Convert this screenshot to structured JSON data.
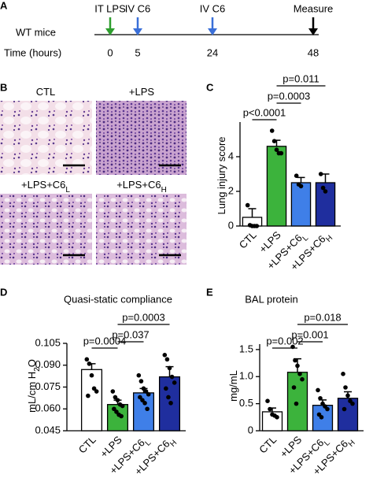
{
  "timeline": {
    "panel_label": "A",
    "subject": "WT mice",
    "axis_label": "Time (hours)",
    "events": [
      {
        "label": "IT LPS",
        "time": 0,
        "color": "#2e9e2e"
      },
      {
        "label": "IV C6",
        "time": 5,
        "color": "#3a6fd8"
      },
      {
        "label": "IV C6",
        "time": 24,
        "color": "#3a6fd8"
      },
      {
        "label": "Measure",
        "time": 48,
        "color": "#000000"
      }
    ]
  },
  "histology": {
    "panel_label": "B",
    "panels": [
      {
        "label": "CTL",
        "subscript": null,
        "color": "#000000"
      },
      {
        "label": "+LPS",
        "subscript": null,
        "color": "#2e9e2e"
      },
      {
        "label": "+LPS+C6",
        "subscript": "L",
        "color": "#3a6fd8"
      },
      {
        "label": "+LPS+C6",
        "subscript": "H",
        "color": "#1f2e9e"
      }
    ]
  },
  "chart_data": [
    {
      "type": "bar",
      "panel_label": "C",
      "ylabel": "Lung injury score",
      "categories": [
        "CTL",
        "+LPS",
        "+LPS+C6",
        "+LPS+C6"
      ],
      "category_subscripts": [
        null,
        null,
        "L",
        "H"
      ],
      "colors": [
        "#ffffff",
        "#3cb33c",
        "#3f7fe8",
        "#1f2e9e"
      ],
      "label_colors": [
        "#000000",
        "#2e9e2e",
        "#3a6fd8",
        "#1f2e9e"
      ],
      "values": [
        0.5,
        4.6,
        2.5,
        2.5
      ],
      "errors": [
        0.5,
        0.35,
        0.3,
        0.5
      ],
      "points": [
        [
          1.2,
          0.05,
          0,
          0,
          0
        ],
        [
          5.5,
          4.9,
          4.4,
          4.2,
          4.2
        ],
        [
          2.9,
          2.4,
          2.3
        ],
        [
          3.0,
          2.2,
          2.0
        ]
      ],
      "annotations": [
        "p<0.0001",
        "p=0.0003",
        "p=0.011"
      ],
      "ylim": [
        0,
        6
      ],
      "yticks": [
        0,
        2,
        4
      ]
    },
    {
      "type": "bar",
      "panel_label": "D",
      "title": "Quasi-static compliance",
      "ylabel": "mL/cm H",
      "ylabel_subscript": "2",
      "ylabel_suffix": "O",
      "categories": [
        "CTL",
        "+LPS",
        "+LPS+C6",
        "+LPS+C6"
      ],
      "category_subscripts": [
        null,
        null,
        "L",
        "H"
      ],
      "colors": [
        "#ffffff",
        "#3cb33c",
        "#3f7fe8",
        "#1f2e9e"
      ],
      "label_colors": [
        "#000000",
        "#2e9e2e",
        "#3a6fd8",
        "#1f2e9e"
      ],
      "values": [
        0.087,
        0.063,
        0.071,
        0.082
      ],
      "errors": [
        0.004,
        0.003,
        0.003,
        0.007
      ],
      "points": [
        [
          0.094,
          0.091,
          0.083,
          0.074,
          0.072,
          0.069
        ],
        [
          0.072,
          0.068,
          0.066,
          0.063,
          0.062,
          0.06,
          0.058,
          0.056,
          0.055
        ],
        [
          0.083,
          0.079,
          0.074,
          0.072,
          0.07,
          0.068,
          0.066,
          0.064,
          0.06
        ],
        [
          0.097,
          0.094,
          0.088,
          0.082,
          0.078,
          0.074,
          0.068,
          0.064
        ]
      ],
      "annotations": [
        "p=0.0004",
        "p=0.037",
        "p=0.0003"
      ],
      "ylim": [
        0.045,
        0.105
      ],
      "yticks": [
        {
          "value": 0.045,
          "label": "0.045"
        },
        {
          "value": 0.06,
          "label": "0.060"
        },
        {
          "value": 0.075,
          "label": "0.075"
        },
        {
          "value": 0.09,
          "label": "0.090"
        },
        {
          "value": 0.105,
          "label": "0.105"
        }
      ]
    },
    {
      "type": "bar",
      "panel_label": "E",
      "title": "BAL protein",
      "ylabel": "mg/mL",
      "categories": [
        "CTL",
        "+LPS",
        "+LPS+C6",
        "+LPS+C6"
      ],
      "category_subscripts": [
        null,
        null,
        "L",
        "H"
      ],
      "colors": [
        "#ffffff",
        "#3cb33c",
        "#3f7fe8",
        "#1f2e9e"
      ],
      "label_colors": [
        "#000000",
        "#2e9e2e",
        "#3a6fd8",
        "#1f2e9e"
      ],
      "values": [
        0.35,
        1.08,
        0.47,
        0.6
      ],
      "errors": [
        0.07,
        0.25,
        0.1,
        0.12
      ],
      "points": [
        [
          0.55,
          0.4,
          0.3,
          0.28,
          0.25
        ],
        [
          1.55,
          1.3,
          1.2,
          1.05,
          0.95,
          0.8,
          0.5
        ],
        [
          0.75,
          0.6,
          0.5,
          0.45,
          0.4,
          0.3,
          0.25
        ],
        [
          1.05,
          0.8,
          0.65,
          0.55,
          0.5,
          0.4
        ]
      ],
      "annotations": [
        "p=0.002",
        "p=0.001",
        "p=0.018"
      ],
      "ylim": [
        0,
        1.6
      ],
      "yticks": [
        0,
        0.5,
        {
          "value": 1,
          "label": "1.0"
        },
        {
          "value": 1.5,
          "label": "1.5"
        }
      ]
    }
  ]
}
